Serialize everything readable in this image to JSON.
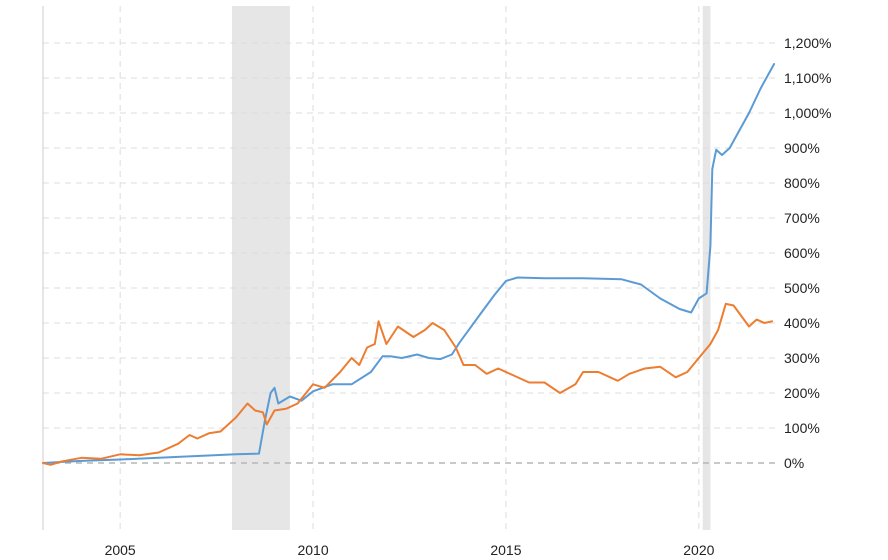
{
  "chart_data": {
    "type": "line",
    "title": "",
    "xlabel": "",
    "ylabel": "",
    "xlim": [
      2003.0,
      2022.0
    ],
    "ylim": [
      -200,
      1300
    ],
    "y_ticks": [
      0,
      100,
      200,
      300,
      400,
      500,
      600,
      700,
      800,
      900,
      1000,
      1100,
      1200
    ],
    "y_tick_labels": [
      "0%",
      "100%",
      "200%",
      "300%",
      "400%",
      "500%",
      "600%",
      "700%",
      "800%",
      "900%",
      "1,000%",
      "1,100%",
      "1,200%"
    ],
    "x_ticks": [
      2005,
      2010,
      2015,
      2020
    ],
    "x_tick_labels": [
      "2005",
      "2010",
      "2015",
      "2020"
    ],
    "y_axis_position": "right",
    "grid": true,
    "legend": "none",
    "recessions": [
      [
        2007.9,
        2009.4
      ],
      [
        2020.1,
        2020.3
      ]
    ],
    "colors": {
      "series_1": "#5b9bd5",
      "series_2": "#ed7d31",
      "recession": "#e6e6e6",
      "grid": "#dcdcdc"
    },
    "series": [
      {
        "color": "#5b9bd5",
        "points": [
          [
            2003.0,
            0
          ],
          [
            2003.5,
            3
          ],
          [
            2004.0,
            6
          ],
          [
            2005.0,
            10
          ],
          [
            2006.0,
            15
          ],
          [
            2007.0,
            20
          ],
          [
            2008.0,
            25
          ],
          [
            2008.6,
            27
          ],
          [
            2008.75,
            120
          ],
          [
            2008.9,
            200
          ],
          [
            2009.0,
            215
          ],
          [
            2009.1,
            170
          ],
          [
            2009.4,
            190
          ],
          [
            2009.7,
            178
          ],
          [
            2010.0,
            205
          ],
          [
            2010.5,
            225
          ],
          [
            2011.0,
            225
          ],
          [
            2011.5,
            260
          ],
          [
            2011.8,
            305
          ],
          [
            2012.0,
            305
          ],
          [
            2012.3,
            300
          ],
          [
            2012.7,
            310
          ],
          [
            2013.0,
            300
          ],
          [
            2013.3,
            297
          ],
          [
            2013.6,
            310
          ],
          [
            2013.8,
            345
          ],
          [
            2014.0,
            375
          ],
          [
            2014.3,
            420
          ],
          [
            2014.7,
            480
          ],
          [
            2015.0,
            520
          ],
          [
            2015.3,
            530
          ],
          [
            2016.0,
            528
          ],
          [
            2017.0,
            528
          ],
          [
            2018.0,
            525
          ],
          [
            2018.5,
            510
          ],
          [
            2019.0,
            470
          ],
          [
            2019.5,
            440
          ],
          [
            2019.8,
            430
          ],
          [
            2020.0,
            470
          ],
          [
            2020.2,
            485
          ],
          [
            2020.3,
            620
          ],
          [
            2020.35,
            840
          ],
          [
            2020.45,
            895
          ],
          [
            2020.6,
            880
          ],
          [
            2020.8,
            900
          ],
          [
            2021.0,
            940
          ],
          [
            2021.3,
            1000
          ],
          [
            2021.6,
            1070
          ],
          [
            2021.8,
            1110
          ],
          [
            2021.95,
            1140
          ]
        ]
      },
      {
        "color": "#ed7d31",
        "points": [
          [
            2003.0,
            0
          ],
          [
            2003.2,
            -5
          ],
          [
            2003.5,
            5
          ],
          [
            2004.0,
            15
          ],
          [
            2004.5,
            12
          ],
          [
            2005.0,
            25
          ],
          [
            2005.5,
            22
          ],
          [
            2006.0,
            30
          ],
          [
            2006.5,
            55
          ],
          [
            2006.8,
            80
          ],
          [
            2007.0,
            70
          ],
          [
            2007.3,
            85
          ],
          [
            2007.6,
            90
          ],
          [
            2008.0,
            130
          ],
          [
            2008.3,
            170
          ],
          [
            2008.5,
            150
          ],
          [
            2008.7,
            145
          ],
          [
            2008.8,
            110
          ],
          [
            2009.0,
            150
          ],
          [
            2009.3,
            155
          ],
          [
            2009.6,
            170
          ],
          [
            2010.0,
            225
          ],
          [
            2010.3,
            215
          ],
          [
            2010.7,
            260
          ],
          [
            2011.0,
            300
          ],
          [
            2011.2,
            280
          ],
          [
            2011.4,
            330
          ],
          [
            2011.6,
            340
          ],
          [
            2011.7,
            405
          ],
          [
            2011.9,
            340
          ],
          [
            2012.2,
            390
          ],
          [
            2012.6,
            360
          ],
          [
            2012.9,
            380
          ],
          [
            2013.1,
            400
          ],
          [
            2013.4,
            380
          ],
          [
            2013.7,
            330
          ],
          [
            2013.9,
            280
          ],
          [
            2014.2,
            280
          ],
          [
            2014.5,
            255
          ],
          [
            2014.8,
            270
          ],
          [
            2015.2,
            250
          ],
          [
            2015.6,
            230
          ],
          [
            2016.0,
            230
          ],
          [
            2016.4,
            200
          ],
          [
            2016.8,
            225
          ],
          [
            2017.0,
            260
          ],
          [
            2017.4,
            260
          ],
          [
            2017.9,
            235
          ],
          [
            2018.2,
            255
          ],
          [
            2018.6,
            270
          ],
          [
            2019.0,
            275
          ],
          [
            2019.4,
            245
          ],
          [
            2019.7,
            260
          ],
          [
            2020.0,
            300
          ],
          [
            2020.3,
            340
          ],
          [
            2020.5,
            380
          ],
          [
            2020.7,
            455
          ],
          [
            2020.9,
            450
          ],
          [
            2021.1,
            420
          ],
          [
            2021.3,
            390
          ],
          [
            2021.5,
            410
          ],
          [
            2021.7,
            400
          ],
          [
            2021.9,
            405
          ]
        ]
      }
    ]
  }
}
